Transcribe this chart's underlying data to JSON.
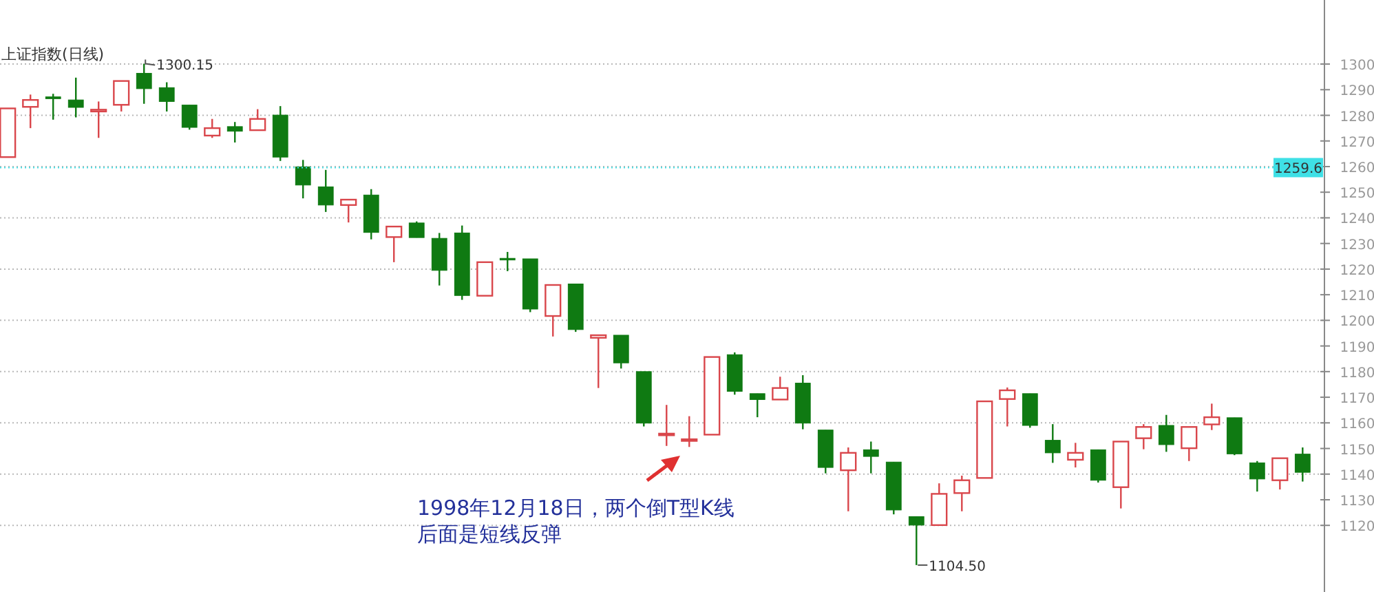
{
  "chart_data": {
    "type": "candlestick",
    "title": "上证指数(日线)",
    "categories": [
      null,
      null,
      null,
      null,
      null,
      null,
      null,
      null,
      null,
      null,
      null,
      null,
      null,
      null,
      null,
      null,
      null,
      null,
      null,
      null,
      null,
      null,
      null,
      null,
      null,
      null,
      null,
      null,
      null,
      null,
      null,
      null,
      null,
      null,
      null,
      null,
      null,
      null,
      null,
      null,
      null,
      null,
      null,
      null,
      null,
      null,
      null,
      null,
      null,
      null,
      null,
      null,
      null,
      null,
      null,
      null,
      null,
      null
    ],
    "ohlc": [
      [
        1263.7,
        1282.7,
        1263.7,
        1282.7
      ],
      [
        1283.3,
        1288.1,
        1275,
        1286
      ],
      [
        1287.2,
        1288.4,
        1278.3,
        1286.5
      ],
      [
        1286,
        1294.7,
        1279.2,
        1283.1
      ],
      [
        1281.5,
        1285.4,
        1271.2,
        1282.2
      ],
      [
        1284.1,
        1293.4,
        1281.5,
        1293.4
      ],
      [
        1296.4,
        1300.15,
        1284.5,
        1290.4
      ],
      [
        1290.8,
        1292.9,
        1281.5,
        1285.4
      ],
      [
        1284,
        1284,
        1274.4,
        1275.3
      ],
      [
        1272.1,
        1278.6,
        1271.2,
        1275
      ],
      [
        1275.6,
        1277.4,
        1269.4,
        1273.8
      ],
      [
        1274.2,
        1282.4,
        1274.2,
        1278.6
      ],
      [
        1280.1,
        1283.6,
        1262.2,
        1263.7
      ],
      [
        1259.9,
        1262.6,
        1247.6,
        1252.8
      ],
      [
        1252.1,
        1258.7,
        1242.3,
        1245
      ],
      [
        1245,
        1247.1,
        1238.2,
        1247.1
      ],
      [
        1248.9,
        1251.2,
        1231.6,
        1234.3
      ],
      [
        1232.5,
        1236.6,
        1222.7,
        1236.6
      ],
      [
        1238,
        1238.6,
        1232.3,
        1232.3
      ],
      [
        1232,
        1234.1,
        1213.6,
        1219.5
      ],
      [
        1234.1,
        1237,
        1208,
        1209.7
      ],
      [
        1209.6,
        1222.7,
        1209.6,
        1222.7
      ],
      [
        1224.2,
        1226.7,
        1219.2,
        1224
      ],
      [
        1224,
        1224,
        1203.2,
        1204.4
      ],
      [
        1201.7,
        1213.8,
        1193.7,
        1213.8
      ],
      [
        1214.2,
        1214.2,
        1195.5,
        1196.4
      ],
      [
        1193.2,
        1194.2,
        1173.6,
        1194.2
      ],
      [
        1194.2,
        1194.2,
        1181.2,
        1183.4
      ],
      [
        1180,
        1180,
        1158.6,
        1159.9
      ],
      [
        1155.6,
        1167,
        1151,
        1155.8
      ],
      [
        1153.4,
        1162.6,
        1150.6,
        1153.6
      ],
      [
        1155.4,
        1185.7,
        1155.4,
        1185.7
      ],
      [
        1186.6,
        1187.5,
        1171,
        1172.3
      ],
      [
        1171.4,
        1171.4,
        1162.2,
        1169.1
      ],
      [
        1169.1,
        1178,
        1169.1,
        1173.6
      ],
      [
        1175.5,
        1178.6,
        1157.5,
        1159.9
      ],
      [
        1157.2,
        1157.2,
        1140.3,
        1142.6
      ],
      [
        1141.5,
        1150.4,
        1125.5,
        1148.3
      ],
      [
        1149.5,
        1152.7,
        1140.3,
        1146.9
      ],
      [
        1144.7,
        1144.7,
        1124.3,
        1126
      ],
      [
        1123.4,
        1123.4,
        1104.5,
        1120.1
      ],
      [
        1120.1,
        1136.4,
        1120.1,
        1132.3
      ],
      [
        1132.6,
        1139.4,
        1125.5,
        1137.6
      ],
      [
        1138.5,
        1168.4,
        1138.5,
        1168.4
      ],
      [
        1169.3,
        1173.8,
        1158.6,
        1172.7
      ],
      [
        1171.4,
        1171.4,
        1158.1,
        1159
      ],
      [
        1153.2,
        1159.5,
        1144.4,
        1148.3
      ],
      [
        1145.6,
        1152.2,
        1142.6,
        1148.3
      ],
      [
        1149.5,
        1149.5,
        1136.7,
        1137.6
      ],
      [
        1134.9,
        1152.7,
        1126.6,
        1152.7
      ],
      [
        1154,
        1159.5,
        1149.7,
        1158.4
      ],
      [
        1159,
        1163.1,
        1148.7,
        1151.5
      ],
      [
        1150.1,
        1158.4,
        1145.1,
        1158.4
      ],
      [
        1159.4,
        1167.5,
        1157.2,
        1162.2
      ],
      [
        1162,
        1162,
        1147.4,
        1147.9
      ],
      [
        1144.4,
        1145.1,
        1133.2,
        1138.1
      ],
      [
        1137.6,
        1146.2,
        1134,
        1146.2
      ],
      [
        1147.8,
        1150.4,
        1137.1,
        1140.7
      ]
    ],
    "ylim": [
      1094,
      1325
    ],
    "yticks": [
      1120,
      1130,
      1140,
      1150,
      1160,
      1170,
      1180,
      1190,
      1200,
      1210,
      1220,
      1230,
      1240,
      1250,
      1260,
      1270,
      1280,
      1290,
      1300
    ],
    "grid": "y",
    "ref_lines": [
      {
        "axis": "y",
        "value": 1259.6,
        "label": "1259.6",
        "color": "#3fe0e6"
      }
    ],
    "annotations": [
      "1300.15",
      "1104.50",
      "1998年12月18日，两个倒T型K线",
      "后面是短线反弹"
    ]
  }
}
